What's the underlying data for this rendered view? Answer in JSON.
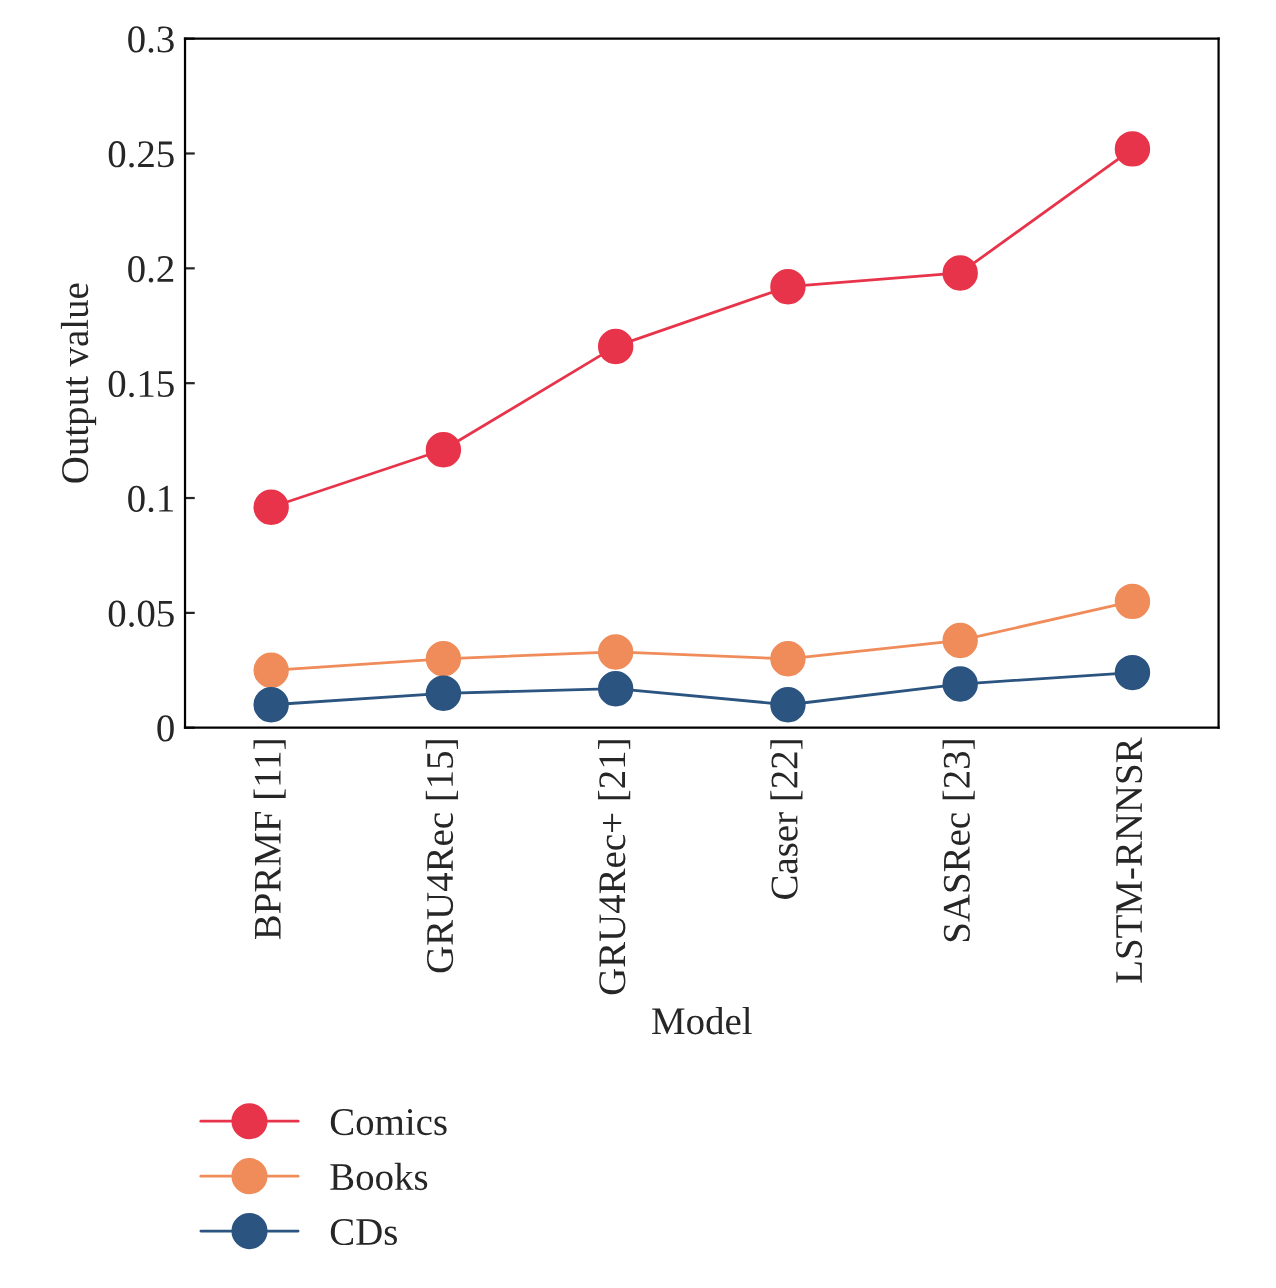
{
  "chart_data": {
    "type": "line",
    "xlabel": "Model",
    "ylabel": "Output value",
    "categories": [
      "BPRMF [11]",
      "GRU4Rec [15]",
      "GRU4Rec+ [21]",
      "Caser [22]",
      "SASRec [23]",
      "LSTM-RNNSR"
    ],
    "series": [
      {
        "name": "Comics",
        "color": "#e8344a",
        "values": [
          0.096,
          0.121,
          0.166,
          0.192,
          0.198,
          0.252
        ]
      },
      {
        "name": "Books",
        "color": "#f08c5a",
        "values": [
          0.025,
          0.03,
          0.033,
          0.03,
          0.038,
          0.055
        ]
      },
      {
        "name": "CDs",
        "color": "#2b5480",
        "values": [
          0.01,
          0.015,
          0.017,
          0.01,
          0.019,
          0.024
        ]
      }
    ],
    "ylim": [
      0,
      0.3
    ],
    "yticks": [
      0,
      0.05,
      0.1,
      0.15,
      0.2,
      0.25,
      0.3
    ],
    "grid": false,
    "legend": "bottom left",
    "marker": "circle",
    "line_style": "solid"
  }
}
